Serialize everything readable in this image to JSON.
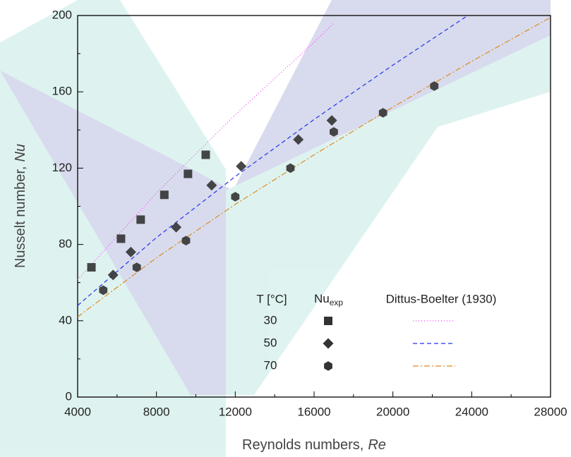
{
  "chart_data": {
    "type": "scatter",
    "xlabel": "Reynolds numbers,",
    "xlabel_symbol": "Re",
    "ylabel": "Nusselt number,",
    "ylabel_symbol": "Nu",
    "xlim": [
      4000,
      28000
    ],
    "xticks": [
      4000,
      8000,
      12000,
      16000,
      20000,
      24000,
      28000
    ],
    "ylim": [
      0,
      200
    ],
    "yticks": [
      0,
      40,
      80,
      120,
      160,
      200
    ],
    "legend_headers": {
      "temperature": "T [°C]",
      "measured": "Nu",
      "measured_sub": "exp",
      "correlation": "Dittus-Boelter (1930)"
    },
    "series": [
      {
        "name": "30",
        "marker": "square",
        "color": "#333333",
        "x": [
          4700,
          6200,
          7200,
          8400,
          9600,
          10500
        ],
        "values": [
          68,
          83,
          93,
          106,
          117,
          127
        ],
        "fit": {
          "color": "#ff33ff",
          "dash": "1 3",
          "x": [
            4000,
            8000,
            12000,
            16000,
            17000
          ],
          "values": [
            61.5,
            107,
            148,
            186,
            196
          ]
        }
      },
      {
        "name": "50",
        "marker": "diamond",
        "color": "#333333",
        "x": [
          5800,
          6700,
          9000,
          10800,
          12300,
          15200,
          16900
        ],
        "values": [
          64,
          76,
          89,
          111,
          121,
          135,
          145
        ],
        "fit": {
          "color": "#2233ee",
          "dash": "6 4",
          "x": [
            4000,
            8000,
            12000,
            16000,
            20000,
            23800
          ],
          "values": [
            48,
            83.6,
            115.6,
            145.5,
            174,
            200
          ]
        }
      },
      {
        "name": "70",
        "marker": "hexagon",
        "color": "#333333",
        "x": [
          5300,
          7000,
          9500,
          12000,
          14800,
          17000,
          19500,
          22100
        ],
        "values": [
          56,
          68,
          82,
          105,
          120,
          139,
          149,
          163
        ],
        "fit": {
          "color": "#e08a1e",
          "dash": "8 3 2 3",
          "x": [
            4000,
            8000,
            12000,
            16000,
            20000,
            24000,
            28000
          ],
          "values": [
            42,
            73,
            101,
            127,
            152,
            176,
            199
          ]
        }
      }
    ]
  }
}
